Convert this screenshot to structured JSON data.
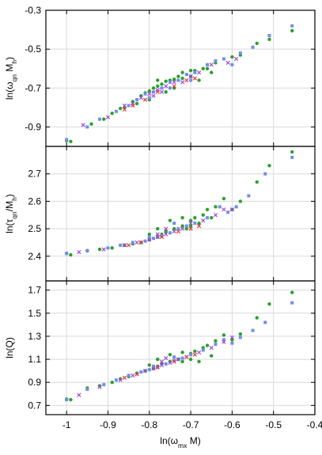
{
  "colors": {
    "series_green": "#2ca02c",
    "series_blue": "#6f8fe8",
    "series_purple": "#a24ad8",
    "series_red": "#e23a4b"
  },
  "chart_data": [
    {
      "type": "scatter",
      "panel": "top",
      "ylabel_parts": [
        "ln(ω",
        "qn",
        " M",
        "h",
        ")"
      ],
      "ylim": [
        -1.0,
        -0.3
      ],
      "yticks": [
        -0.9,
        -0.7,
        -0.5,
        -0.3
      ],
      "ytick_labels": [
        "-0.9",
        "-0.7",
        "-0.5",
        "-0.3"
      ],
      "xlim": [
        -1.05,
        -0.4
      ],
      "grid": true,
      "series": [
        {
          "points": [
            [
              -1.0,
              -0.97
            ],
            [
              -0.99,
              -0.975
            ],
            [
              -0.94,
              -0.885
            ],
            [
              -0.91,
              -0.86
            ],
            [
              -0.89,
              -0.83
            ],
            [
              -0.87,
              -0.805
            ],
            [
              -0.86,
              -0.8
            ],
            [
              -0.84,
              -0.77
            ],
            [
              -0.82,
              -0.74
            ],
            [
              -0.81,
              -0.725
            ],
            [
              -0.8,
              -0.715
            ],
            [
              -0.79,
              -0.7
            ],
            [
              -0.78,
              -0.69
            ],
            [
              -0.77,
              -0.68
            ],
            [
              -0.76,
              -0.665
            ],
            [
              -0.75,
              -0.66
            ],
            [
              -0.74,
              -0.655
            ],
            [
              -0.73,
              -0.64
            ],
            [
              -0.72,
              -0.65
            ],
            [
              -0.7,
              -0.61
            ],
            [
              -0.69,
              -0.61
            ],
            [
              -0.67,
              -0.6
            ],
            [
              -0.66,
              -0.6
            ],
            [
              -0.64,
              -0.57
            ],
            [
              -0.6,
              -0.54
            ],
            [
              -0.58,
              -0.53
            ],
            [
              -0.54,
              -0.47
            ],
            [
              -0.51,
              -0.45
            ],
            [
              -0.455,
              -0.405
            ],
            [
              -0.83,
              -0.78
            ],
            [
              -0.8,
              -0.76
            ],
            [
              -0.76,
              -0.72
            ],
            [
              -0.74,
              -0.7
            ],
            [
              -0.78,
              -0.66
            ],
            [
              -0.72,
              -0.62
            ],
            [
              -0.7,
              -0.64
            ],
            [
              -0.68,
              -0.66
            ],
            [
              -0.65,
              -0.62
            ]
          ]
        },
        {
          "points": [
            [
              -1.0,
              -0.965
            ],
            [
              -0.95,
              -0.9
            ],
            [
              -0.92,
              -0.86
            ],
            [
              -0.88,
              -0.82
            ],
            [
              -0.85,
              -0.79
            ],
            [
              -0.83,
              -0.76
            ],
            [
              -0.81,
              -0.73
            ],
            [
              -0.79,
              -0.72
            ],
            [
              -0.77,
              -0.7
            ],
            [
              -0.75,
              -0.67
            ],
            [
              -0.73,
              -0.66
            ],
            [
              -0.71,
              -0.63
            ],
            [
              -0.69,
              -0.62
            ],
            [
              -0.66,
              -0.58
            ],
            [
              -0.64,
              -0.56
            ],
            [
              -0.62,
              -0.55
            ],
            [
              -0.6,
              -0.58
            ],
            [
              -0.58,
              -0.52
            ],
            [
              -0.55,
              -0.49
            ],
            [
              -0.51,
              -0.43
            ],
            [
              -0.455,
              -0.38
            ],
            [
              -0.8,
              -0.75
            ],
            [
              -0.75,
              -0.7
            ],
            [
              -0.7,
              -0.66
            ]
          ]
        },
        {
          "points": [
            [
              -0.96,
              -0.89
            ],
            [
              -0.9,
              -0.85
            ],
            [
              -0.86,
              -0.79
            ],
            [
              -0.84,
              -0.78
            ],
            [
              -0.82,
              -0.75
            ],
            [
              -0.8,
              -0.73
            ],
            [
              -0.78,
              -0.71
            ],
            [
              -0.76,
              -0.69
            ],
            [
              -0.74,
              -0.67
            ],
            [
              -0.72,
              -0.67
            ],
            [
              -0.7,
              -0.64
            ],
            [
              -0.68,
              -0.62
            ],
            [
              -0.65,
              -0.58
            ],
            [
              -0.61,
              -0.57
            ],
            [
              -0.59,
              -0.55
            ],
            [
              -0.79,
              -0.74
            ],
            [
              -0.77,
              -0.72
            ]
          ]
        },
        {
          "points": [
            [
              -0.86,
              -0.81
            ],
            [
              -0.84,
              -0.79
            ],
            [
              -0.78,
              -0.72
            ],
            [
              -0.74,
              -0.69
            ],
            [
              -0.71,
              -0.66
            ],
            [
              -0.69,
              -0.65
            ],
            [
              -0.81,
              -0.76
            ]
          ]
        }
      ]
    },
    {
      "type": "scatter",
      "panel": "middle",
      "ylabel_parts": [
        "ln(τ",
        "qn",
        "/M",
        "h",
        ")"
      ],
      "ylim": [
        2.31,
        2.8
      ],
      "yticks": [
        2.4,
        2.5,
        2.6,
        2.7
      ],
      "ytick_labels": [
        "2.4",
        "2.5",
        "2.6",
        "2.7"
      ],
      "xlim": [
        -1.05,
        -0.4
      ],
      "grid": true,
      "series": [
        {
          "points": [
            [
              -1.0,
              2.41
            ],
            [
              -0.99,
              2.405
            ],
            [
              -0.95,
              2.42
            ],
            [
              -0.92,
              2.425
            ],
            [
              -0.89,
              2.43
            ],
            [
              -0.86,
              2.44
            ],
            [
              -0.84,
              2.445
            ],
            [
              -0.82,
              2.45
            ],
            [
              -0.8,
              2.46
            ],
            [
              -0.78,
              2.47
            ],
            [
              -0.77,
              2.48
            ],
            [
              -0.76,
              2.49
            ],
            [
              -0.74,
              2.5
            ],
            [
              -0.72,
              2.51
            ],
            [
              -0.71,
              2.5
            ],
            [
              -0.7,
              2.53
            ],
            [
              -0.69,
              2.54
            ],
            [
              -0.67,
              2.55
            ],
            [
              -0.66,
              2.57
            ],
            [
              -0.64,
              2.58
            ],
            [
              -0.62,
              2.61
            ],
            [
              -0.6,
              2.57
            ],
            [
              -0.58,
              2.6
            ],
            [
              -0.54,
              2.67
            ],
            [
              -0.51,
              2.73
            ],
            [
              -0.455,
              2.78
            ],
            [
              -0.8,
              2.48
            ],
            [
              -0.78,
              2.5
            ],
            [
              -0.75,
              2.53
            ],
            [
              -0.72,
              2.54
            ],
            [
              -0.7,
              2.51
            ],
            [
              -0.68,
              2.52
            ],
            [
              -0.65,
              2.54
            ]
          ]
        },
        {
          "points": [
            [
              -1.0,
              2.41
            ],
            [
              -0.95,
              2.42
            ],
            [
              -0.9,
              2.43
            ],
            [
              -0.87,
              2.44
            ],
            [
              -0.84,
              2.45
            ],
            [
              -0.81,
              2.455
            ],
            [
              -0.79,
              2.465
            ],
            [
              -0.77,
              2.475
            ],
            [
              -0.75,
              2.485
            ],
            [
              -0.73,
              2.5
            ],
            [
              -0.71,
              2.51
            ],
            [
              -0.69,
              2.52
            ],
            [
              -0.66,
              2.54
            ],
            [
              -0.63,
              2.58
            ],
            [
              -0.61,
              2.56
            ],
            [
              -0.59,
              2.58
            ],
            [
              -0.56,
              2.62
            ],
            [
              -0.52,
              2.7
            ],
            [
              -0.455,
              2.76
            ],
            [
              -0.8,
              2.47
            ],
            [
              -0.74,
              2.52
            ]
          ]
        },
        {
          "points": [
            [
              -0.97,
              2.415
            ],
            [
              -0.91,
              2.425
            ],
            [
              -0.86,
              2.44
            ],
            [
              -0.83,
              2.45
            ],
            [
              -0.8,
              2.46
            ],
            [
              -0.78,
              2.47
            ],
            [
              -0.76,
              2.48
            ],
            [
              -0.74,
              2.49
            ],
            [
              -0.72,
              2.5
            ],
            [
              -0.7,
              2.52
            ],
            [
              -0.67,
              2.53
            ],
            [
              -0.64,
              2.55
            ],
            [
              -0.62,
              2.57
            ],
            [
              -0.6,
              2.57
            ],
            [
              -0.78,
              2.48
            ],
            [
              -0.76,
              2.5
            ]
          ]
        },
        {
          "points": [
            [
              -0.85,
              2.44
            ],
            [
              -0.82,
              2.45
            ],
            [
              -0.77,
              2.47
            ],
            [
              -0.73,
              2.49
            ],
            [
              -0.7,
              2.5
            ],
            [
              -0.68,
              2.51
            ]
          ]
        }
      ]
    },
    {
      "type": "scatter",
      "panel": "bottom",
      "ylabel_parts": [
        "ln(Q)"
      ],
      "ylim": [
        0.62,
        1.78
      ],
      "yticks": [
        0.7,
        0.9,
        1.1,
        1.3,
        1.5,
        1.7
      ],
      "ytick_labels": [
        "0.7",
        "0.9",
        "1.1",
        "1.3",
        "1.5",
        "1.7"
      ],
      "xlim": [
        -1.05,
        -0.4
      ],
      "xticks": [
        -1.0,
        -0.9,
        -0.8,
        -0.7,
        -0.6,
        -0.5,
        -0.4
      ],
      "xtick_labels": [
        "-1",
        "-0.9",
        "-0.8",
        "-0.7",
        "-0.6",
        "-0.5",
        "-0.4"
      ],
      "xlabel_parts": [
        "ln(ω",
        "mx",
        " M)"
      ],
      "grid": true,
      "series": [
        {
          "points": [
            [
              -1.0,
              0.755
            ],
            [
              -0.99,
              0.75
            ],
            [
              -0.95,
              0.85
            ],
            [
              -0.92,
              0.87
            ],
            [
              -0.89,
              0.9
            ],
            [
              -0.87,
              0.93
            ],
            [
              -0.85,
              0.95
            ],
            [
              -0.83,
              0.98
            ],
            [
              -0.81,
              1.0
            ],
            [
              -0.79,
              1.02
            ],
            [
              -0.78,
              1.04
            ],
            [
              -0.77,
              1.06
            ],
            [
              -0.75,
              1.08
            ],
            [
              -0.73,
              1.1
            ],
            [
              -0.72,
              1.08
            ],
            [
              -0.7,
              1.15
            ],
            [
              -0.69,
              1.17
            ],
            [
              -0.67,
              1.2
            ],
            [
              -0.66,
              1.22
            ],
            [
              -0.64,
              1.26
            ],
            [
              -0.62,
              1.31
            ],
            [
              -0.6,
              1.27
            ],
            [
              -0.58,
              1.32
            ],
            [
              -0.54,
              1.46
            ],
            [
              -0.51,
              1.58
            ],
            [
              -0.455,
              1.68
            ],
            [
              -0.8,
              1.05
            ],
            [
              -0.78,
              1.1
            ],
            [
              -0.75,
              1.14
            ],
            [
              -0.72,
              1.16
            ],
            [
              -0.7,
              1.1
            ],
            [
              -0.68,
              1.08
            ],
            [
              -0.65,
              1.13
            ]
          ]
        },
        {
          "points": [
            [
              -1.0,
              0.75
            ],
            [
              -0.95,
              0.84
            ],
            [
              -0.91,
              0.88
            ],
            [
              -0.88,
              0.92
            ],
            [
              -0.85,
              0.96
            ],
            [
              -0.82,
              0.99
            ],
            [
              -0.8,
              1.01
            ],
            [
              -0.78,
              1.03
            ],
            [
              -0.76,
              1.06
            ],
            [
              -0.74,
              1.09
            ],
            [
              -0.72,
              1.11
            ],
            [
              -0.7,
              1.14
            ],
            [
              -0.67,
              1.18
            ],
            [
              -0.64,
              1.23
            ],
            [
              -0.62,
              1.27
            ],
            [
              -0.6,
              1.24
            ],
            [
              -0.58,
              1.29
            ],
            [
              -0.55,
              1.35
            ],
            [
              -0.52,
              1.42
            ],
            [
              -0.455,
              1.59
            ],
            [
              -0.79,
              1.04
            ],
            [
              -0.74,
              1.12
            ]
          ]
        },
        {
          "points": [
            [
              -0.97,
              0.79
            ],
            [
              -0.92,
              0.86
            ],
            [
              -0.87,
              0.92
            ],
            [
              -0.84,
              0.96
            ],
            [
              -0.81,
              1.0
            ],
            [
              -0.79,
              1.02
            ],
            [
              -0.77,
              1.05
            ],
            [
              -0.75,
              1.07
            ],
            [
              -0.73,
              1.1
            ],
            [
              -0.71,
              1.12
            ],
            [
              -0.68,
              1.16
            ],
            [
              -0.65,
              1.2
            ],
            [
              -0.62,
              1.25
            ],
            [
              -0.6,
              1.29
            ],
            [
              -0.77,
              1.08
            ],
            [
              -0.76,
              1.11
            ]
          ]
        },
        {
          "points": [
            [
              -0.86,
              0.94
            ],
            [
              -0.83,
              0.97
            ],
            [
              -0.78,
              1.03
            ],
            [
              -0.74,
              1.08
            ],
            [
              -0.71,
              1.12
            ],
            [
              -0.69,
              1.14
            ]
          ]
        }
      ]
    }
  ]
}
